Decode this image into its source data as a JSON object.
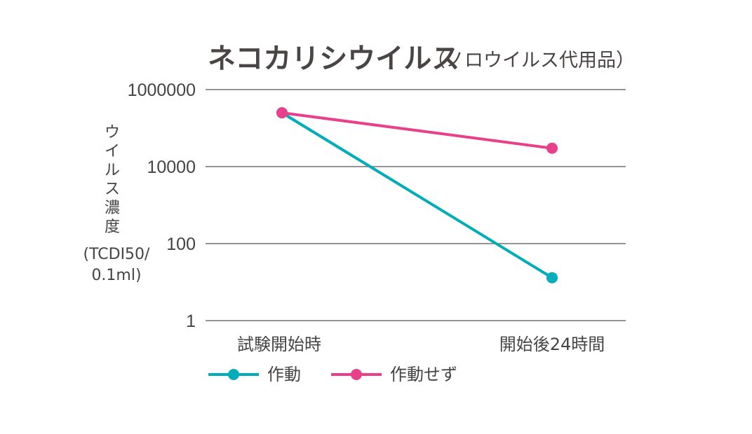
{
  "chart_data": {
    "type": "line",
    "title": "ネコカリシウイルス",
    "subtitle": "（ノロウイルス代用品）",
    "ylabel_lines": [
      "ウ",
      "イ",
      "ル",
      "ス",
      "濃",
      "度",
      "(TCDI50/",
      "0.1ml)"
    ],
    "xlabel": "",
    "yscale": "log",
    "ylim": [
      1,
      1000000
    ],
    "yticks": [
      1,
      100,
      10000,
      1000000
    ],
    "ytick_labels": [
      "1",
      "100",
      "10000",
      "1000000"
    ],
    "grid": true,
    "categories": [
      "試験開始時",
      "開始後24時間"
    ],
    "series": [
      {
        "name": "作動",
        "color": "#00adb8",
        "values": [
          250000,
          13
        ]
      },
      {
        "name": "作動せず",
        "color": "#e8408a",
        "values": [
          250000,
          30000
        ]
      }
    ],
    "legend_position": "bottom-left"
  }
}
